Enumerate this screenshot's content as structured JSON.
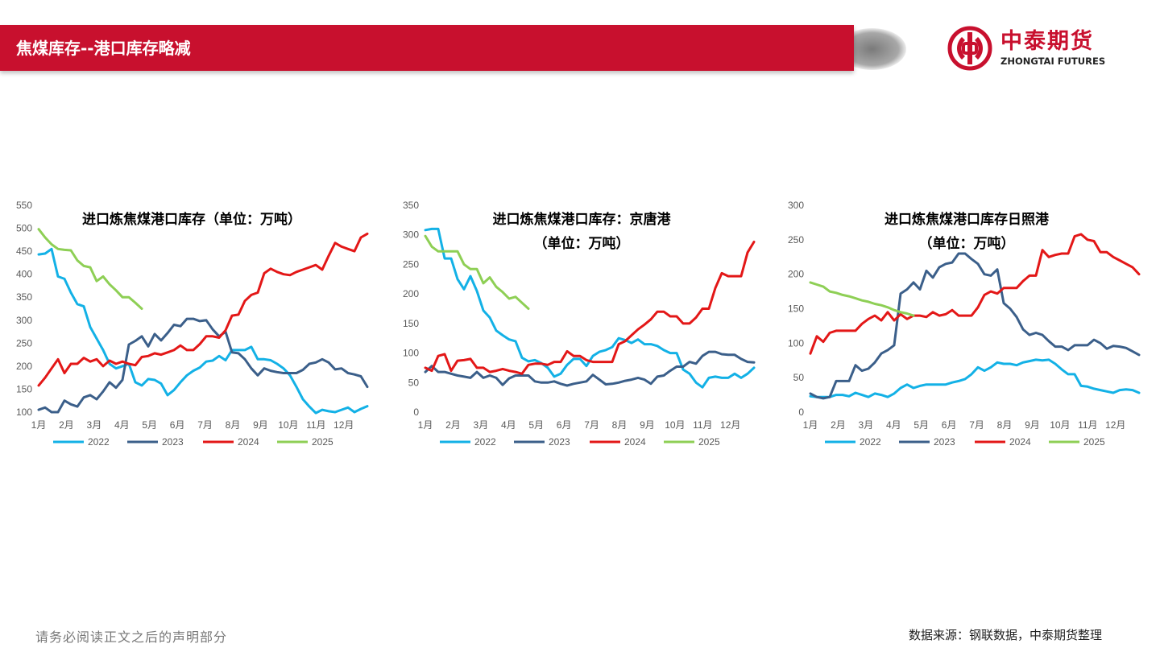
{
  "header": {
    "title": "焦煤库存--港口库存略减",
    "logo_name": "中泰期货",
    "logo_sub": "ZHONGTAI FUTURES"
  },
  "footer": {
    "disclaimer": "请务必阅读正文之后的声明部分",
    "source": "数据来源：钢联数据，中泰期货整理"
  },
  "colors": {
    "brand": "#c8102e",
    "s2022": "#13b1e6",
    "s2023": "#3b5f8a",
    "s2024": "#e31717",
    "s2025": "#8ecf55",
    "tick": "#595959"
  },
  "chart_data": [
    {
      "type": "line",
      "title_lines": [
        "进口炼焦煤港口库存（单位：万吨）"
      ],
      "x_labels": [
        "1月",
        "2月",
        "3月",
        "4月",
        "5月",
        "6月",
        "7月",
        "8月",
        "9月",
        "10月",
        "11月",
        "12月"
      ],
      "ylim": [
        100,
        550
      ],
      "yticks": [
        100,
        150,
        200,
        250,
        300,
        350,
        400,
        450,
        500,
        550
      ],
      "weeks": 52,
      "series": [
        {
          "name": "2022",
          "key": "s2022",
          "values": [
            443,
            445,
            455,
            395,
            390,
            360,
            335,
            330,
            285,
            260,
            235,
            205,
            195,
            200,
            205,
            165,
            158,
            172,
            170,
            162,
            137,
            148,
            165,
            180,
            190,
            197,
            210,
            212,
            222,
            213,
            235,
            235,
            235,
            242,
            215,
            215,
            213,
            205,
            195,
            180,
            155,
            128,
            112,
            98,
            105,
            102,
            100,
            105,
            110,
            100,
            107,
            113
          ]
        },
        {
          "name": "2023",
          "key": "s2023",
          "values": [
            105,
            110,
            100,
            100,
            125,
            117,
            112,
            132,
            137,
            128,
            145,
            165,
            153,
            170,
            247,
            255,
            265,
            243,
            270,
            256,
            272,
            290,
            287,
            303,
            303,
            298,
            300,
            280,
            265,
            275,
            230,
            228,
            215,
            195,
            180,
            195,
            190,
            187,
            185,
            185,
            185,
            192,
            205,
            208,
            215,
            208,
            193,
            195,
            185,
            182,
            178,
            155
          ]
        },
        {
          "name": "2024",
          "key": "s2024",
          "values": [
            158,
            175,
            195,
            215,
            185,
            205,
            205,
            218,
            210,
            215,
            200,
            212,
            205,
            210,
            205,
            202,
            220,
            222,
            228,
            225,
            230,
            235,
            245,
            235,
            235,
            248,
            265,
            265,
            262,
            278,
            310,
            312,
            342,
            355,
            360,
            402,
            412,
            405,
            400,
            398,
            405,
            410,
            415,
            420,
            410,
            440,
            468,
            460,
            455,
            450,
            480,
            488
          ]
        },
        {
          "name": "2025",
          "key": "s2025",
          "values": [
            498,
            480,
            465,
            455,
            453,
            452,
            430,
            418,
            415,
            385,
            395,
            378,
            365,
            350,
            350,
            338,
            325
          ]
        }
      ]
    },
    {
      "type": "line",
      "title_lines": [
        "进口炼焦煤港口库存：京唐港",
        "（单位：万吨）"
      ],
      "x_labels": [
        "1月",
        "2月",
        "3月",
        "4月",
        "5月",
        "6月",
        "7月",
        "8月",
        "9月",
        "10月",
        "11月",
        "12月"
      ],
      "ylim": [
        0,
        350
      ],
      "yticks": [
        0,
        50,
        100,
        150,
        200,
        250,
        300,
        350
      ],
      "weeks": 52,
      "series": [
        {
          "name": "2022",
          "key": "s2022",
          "values": [
            308,
            310,
            310,
            260,
            260,
            225,
            208,
            230,
            205,
            172,
            160,
            138,
            130,
            123,
            120,
            92,
            86,
            88,
            83,
            75,
            60,
            65,
            80,
            90,
            90,
            78,
            95,
            102,
            105,
            110,
            125,
            122,
            117,
            123,
            115,
            115,
            112,
            105,
            100,
            100,
            72,
            65,
            50,
            42,
            58,
            60,
            58,
            58,
            65,
            58,
            65,
            75
          ]
        },
        {
          "name": "2023",
          "key": "s2023",
          "values": [
            68,
            78,
            68,
            68,
            65,
            62,
            60,
            58,
            68,
            58,
            62,
            58,
            46,
            57,
            62,
            62,
            62,
            52,
            50,
            50,
            52,
            48,
            45,
            48,
            50,
            52,
            63,
            55,
            47,
            48,
            50,
            53,
            55,
            58,
            55,
            48,
            60,
            62,
            70,
            77,
            77,
            85,
            82,
            95,
            102,
            102,
            98,
            97,
            97,
            90,
            85,
            84,
            68
          ]
        },
        {
          "name": "2024",
          "key": "s2024",
          "values": [
            75,
            70,
            95,
            98,
            70,
            87,
            88,
            90,
            75,
            75,
            68,
            70,
            73,
            70,
            68,
            65,
            80,
            82,
            82,
            80,
            85,
            85,
            103,
            95,
            95,
            88,
            85,
            85,
            85,
            85,
            115,
            120,
            130,
            140,
            148,
            157,
            170,
            170,
            162,
            162,
            150,
            150,
            160,
            175,
            175,
            210,
            235,
            230,
            230,
            230,
            270,
            288
          ]
        },
        {
          "name": "2025",
          "key": "s2025",
          "values": [
            298,
            280,
            272,
            272,
            272,
            272,
            250,
            242,
            242,
            218,
            228,
            212,
            203,
            192,
            195,
            185,
            175
          ]
        }
      ]
    },
    {
      "type": "line",
      "title_lines": [
        "进口炼焦煤港口库存日照港",
        "（单位：万吨）"
      ],
      "x_labels": [
        "1月",
        "2月",
        "3月",
        "4月",
        "5月",
        "6月",
        "7月",
        "8月",
        "9月",
        "10月",
        "11月",
        "12月"
      ],
      "ylim": [
        0,
        300
      ],
      "yticks": [
        0,
        50,
        100,
        150,
        200,
        250,
        300
      ],
      "weeks": 52,
      "series": [
        {
          "name": "2022",
          "key": "s2022",
          "values": [
            23,
            22,
            22,
            22,
            25,
            25,
            23,
            28,
            25,
            22,
            27,
            25,
            22,
            27,
            35,
            40,
            35,
            38,
            40,
            40,
            40,
            40,
            43,
            45,
            48,
            55,
            65,
            60,
            65,
            72,
            70,
            70,
            68,
            72,
            74,
            76,
            75,
            76,
            70,
            62,
            55,
            55,
            38,
            37,
            34,
            32,
            30,
            28,
            32,
            33,
            32,
            28,
            26
          ]
        },
        {
          "name": "2023",
          "key": "s2023",
          "values": [
            27,
            22,
            20,
            22,
            45,
            45,
            45,
            68,
            60,
            63,
            72,
            85,
            90,
            97,
            172,
            178,
            188,
            178,
            205,
            195,
            210,
            215,
            217,
            230,
            230,
            222,
            215,
            200,
            198,
            207,
            158,
            150,
            138,
            120,
            112,
            115,
            112,
            103,
            95,
            95,
            90,
            97,
            97,
            97,
            105,
            100,
            92,
            96,
            95,
            93,
            88,
            83
          ]
        },
        {
          "name": "2024",
          "key": "s2024",
          "values": [
            85,
            110,
            102,
            115,
            118,
            118,
            118,
            118,
            128,
            135,
            140,
            133,
            145,
            133,
            142,
            135,
            140,
            140,
            138,
            145,
            140,
            142,
            148,
            140,
            140,
            140,
            152,
            170,
            175,
            172,
            180,
            180,
            180,
            190,
            198,
            198,
            235,
            225,
            228,
            230,
            230,
            255,
            258,
            250,
            248,
            232,
            232,
            225,
            220,
            215,
            210,
            200,
            190
          ]
        },
        {
          "name": "2025",
          "key": "s2025",
          "values": [
            188,
            185,
            182,
            175,
            173,
            170,
            168,
            165,
            162,
            160,
            157,
            155,
            152,
            148,
            145,
            143,
            140
          ]
        }
      ]
    }
  ]
}
